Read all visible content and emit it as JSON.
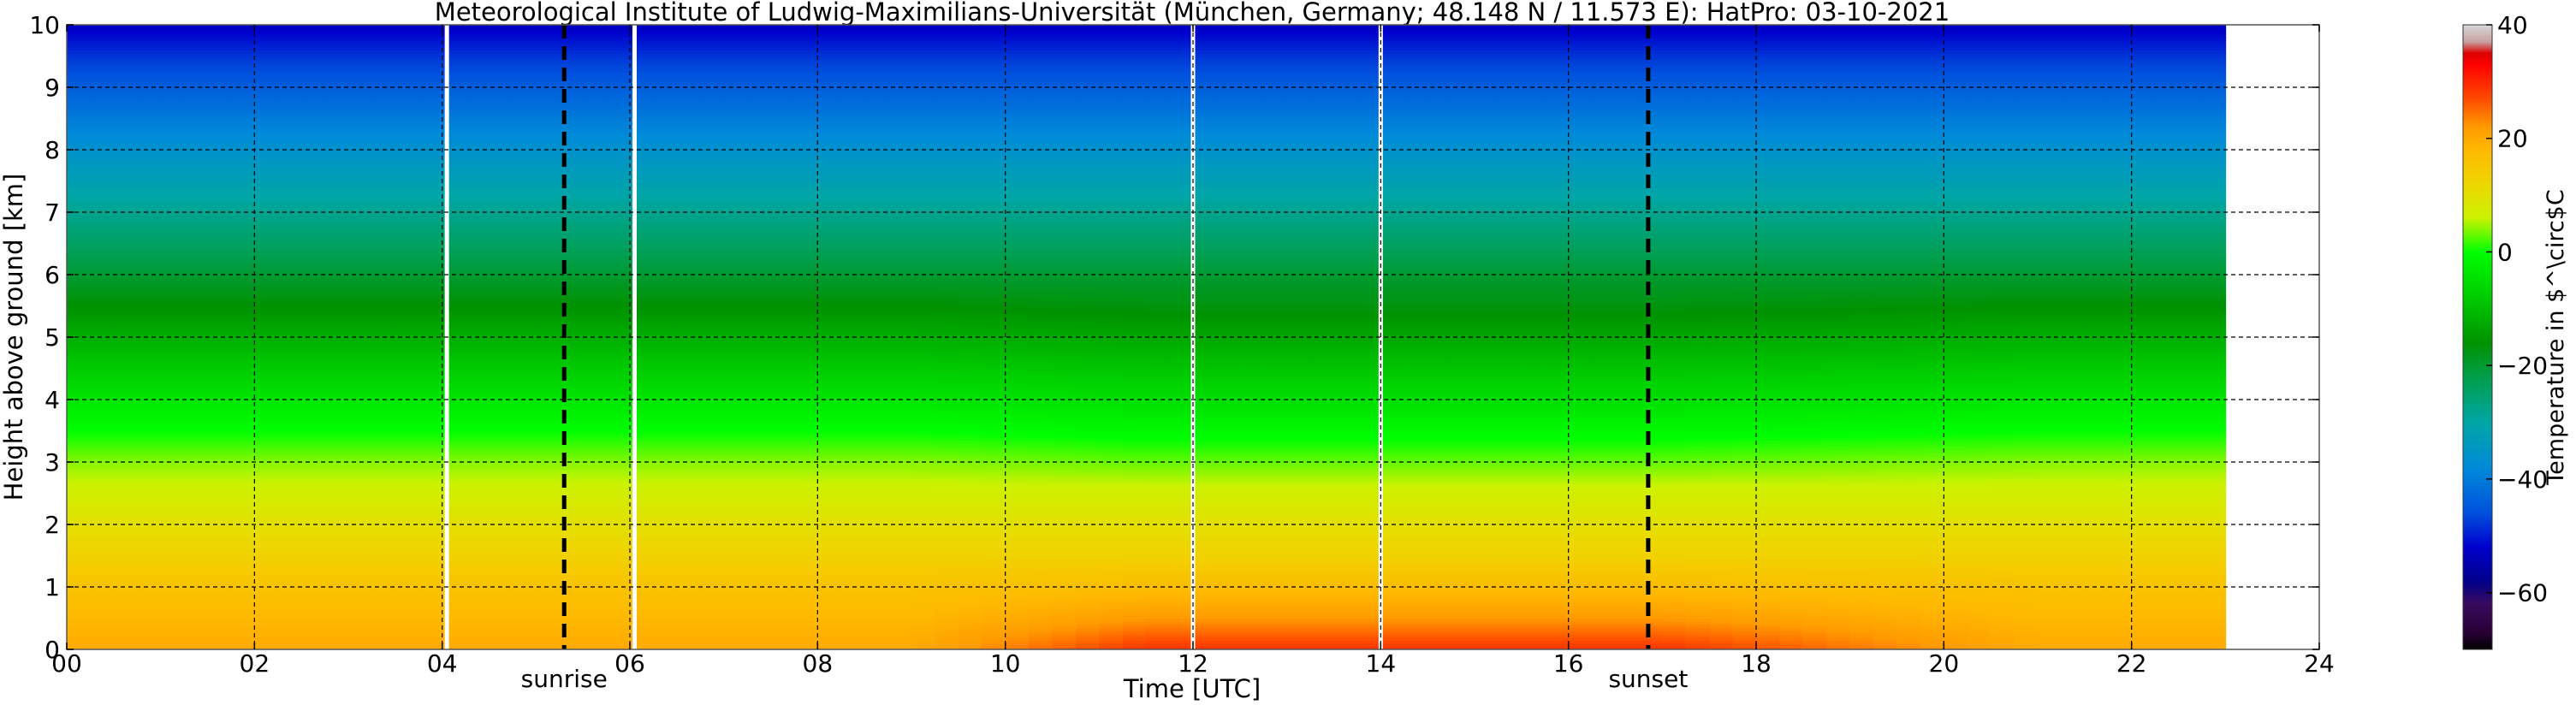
{
  "chart_data": {
    "type": "heatmap",
    "title": "Meteorological Institute of Ludwig-Maximilians-Universität (München, Germany; 48.148 N / 11.573 E):     HatPro: 03-10-2021",
    "xlabel": "Time [UTC]",
    "ylabel": "Height above ground [km]",
    "xlim": [
      0,
      24
    ],
    "ylim": [
      0,
      10
    ],
    "data_end_time": 23,
    "x_ticks": [
      {
        "value": 0,
        "label": "00"
      },
      {
        "value": 2,
        "label": "02"
      },
      {
        "value": 4,
        "label": "04"
      },
      {
        "value": 6,
        "label": "06"
      },
      {
        "value": 8,
        "label": "08"
      },
      {
        "value": 10,
        "label": "10"
      },
      {
        "value": 12,
        "label": "12"
      },
      {
        "value": 14,
        "label": "14"
      },
      {
        "value": 16,
        "label": "16"
      },
      {
        "value": 18,
        "label": "18"
      },
      {
        "value": 20,
        "label": "20"
      },
      {
        "value": 22,
        "label": "22"
      },
      {
        "value": 24,
        "label": "24"
      }
    ],
    "y_ticks": [
      {
        "value": 0,
        "label": "0"
      },
      {
        "value": 1,
        "label": "1"
      },
      {
        "value": 2,
        "label": "2"
      },
      {
        "value": 3,
        "label": "3"
      },
      {
        "value": 4,
        "label": "4"
      },
      {
        "value": 5,
        "label": "5"
      },
      {
        "value": 6,
        "label": "6"
      },
      {
        "value": 7,
        "label": "7"
      },
      {
        "value": 8,
        "label": "8"
      },
      {
        "value": 9,
        "label": "9"
      },
      {
        "value": 10,
        "label": "10"
      }
    ],
    "grid": true,
    "gaps": [
      4.05,
      6.05,
      12.0,
      14.0
    ],
    "sunrise": {
      "time": 5.3,
      "label": "sunrise"
    },
    "sunset": {
      "time": 16.85,
      "label": "sunset"
    },
    "colorbar": {
      "label": "Temperature in $^\\circ$C",
      "range": [
        -70,
        40
      ],
      "ticks": [
        {
          "value": 40,
          "label": "40"
        },
        {
          "value": 20,
          "label": "20"
        },
        {
          "value": 0,
          "label": "0"
        },
        {
          "value": -20,
          "label": "−20"
        },
        {
          "value": -40,
          "label": "−40"
        },
        {
          "value": -60,
          "label": "−60"
        }
      ],
      "stops": [
        {
          "value": -70,
          "color": "#000000"
        },
        {
          "value": -67,
          "color": "#2a0036"
        },
        {
          "value": -62,
          "color": "#3a0a5e"
        },
        {
          "value": -58,
          "color": "#00008a"
        },
        {
          "value": -52,
          "color": "#0000cc"
        },
        {
          "value": -46,
          "color": "#0050dd"
        },
        {
          "value": -38,
          "color": "#008ad8"
        },
        {
          "value": -30,
          "color": "#00a6a6"
        },
        {
          "value": -22,
          "color": "#009e4a"
        },
        {
          "value": -16,
          "color": "#009200"
        },
        {
          "value": -8,
          "color": "#00cc00"
        },
        {
          "value": 0,
          "color": "#00ff00"
        },
        {
          "value": 6,
          "color": "#ccf200"
        },
        {
          "value": 12,
          "color": "#eed600"
        },
        {
          "value": 18,
          "color": "#ffb800"
        },
        {
          "value": 22,
          "color": "#ff9a00"
        },
        {
          "value": 27,
          "color": "#ff4a00"
        },
        {
          "value": 33,
          "color": "#ff0000"
        },
        {
          "value": 35,
          "color": "#dd0000"
        },
        {
          "value": 37,
          "color": "#c8a0a0"
        },
        {
          "value": 40,
          "color": "#d8d8d8"
        }
      ]
    },
    "temperature_profile": {
      "heights_km": [
        0,
        0.5,
        1,
        1.5,
        2,
        2.5,
        3,
        3.5,
        4,
        4.5,
        5,
        5.5,
        6,
        6.5,
        7,
        7.5,
        8,
        8.5,
        9,
        9.5,
        10
      ],
      "night_c": [
        20,
        18,
        16,
        13,
        10,
        7,
        4,
        0,
        -4,
        -8,
        -12,
        -16,
        -20,
        -24,
        -28,
        -32,
        -36,
        -40,
        -44,
        -48,
        -53
      ],
      "afternoon_c": [
        29,
        22,
        17,
        13,
        10,
        7,
        3,
        -1,
        -5,
        -9,
        -13,
        -17,
        -20,
        -24,
        -28,
        -32,
        -36,
        -40,
        -44,
        -48,
        -53
      ]
    }
  }
}
